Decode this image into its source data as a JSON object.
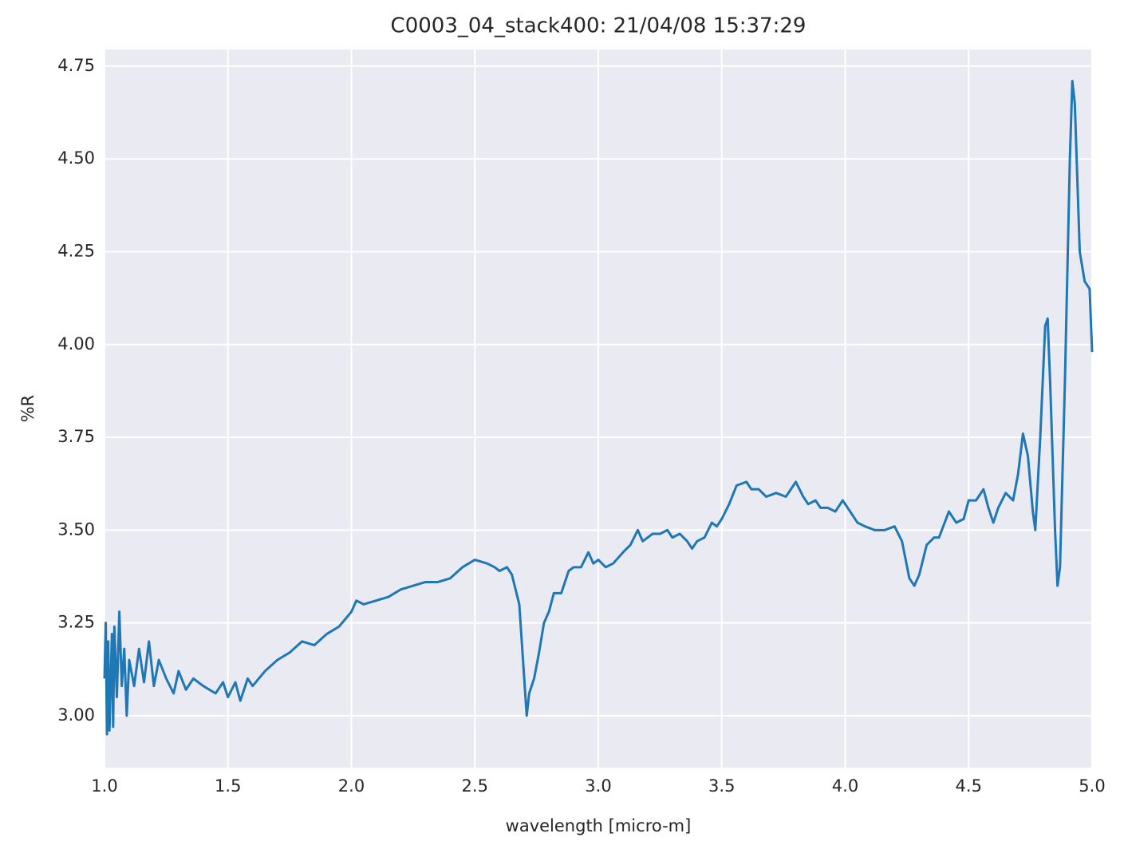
{
  "chart_data": {
    "type": "line",
    "title": "C0003_04_stack400:  21/04/08 15:37:29",
    "xlabel": "wavelength [micro-m]",
    "ylabel": "%R",
    "color": "#1f77b4",
    "grid": true,
    "xlim": [
      1.0,
      5.0
    ],
    "ylim": [
      2.86,
      4.795
    ],
    "xticks": [
      {
        "value": 1.0,
        "label": "1.0"
      },
      1.5,
      {
        "value": 2.0,
        "label": "2.0"
      },
      2.5,
      {
        "value": 3.0,
        "label": "3.0"
      },
      3.5,
      {
        "value": 4.0,
        "label": "4.0"
      },
      4.5,
      {
        "value": 5.0,
        "label": "5.0"
      }
    ],
    "yticks": [
      {
        "value": 3.0,
        "label": "3.00"
      },
      3.25,
      {
        "value": 3.5,
        "label": "3.50"
      },
      3.75,
      {
        "value": 4.0,
        "label": "4.00"
      },
      4.25,
      {
        "value": 4.5,
        "label": "4.50"
      },
      4.75
    ],
    "x": [
      1.0,
      1.005,
      1.01,
      1.015,
      1.02,
      1.03,
      1.035,
      1.04,
      1.05,
      1.06,
      1.07,
      1.08,
      1.09,
      1.1,
      1.12,
      1.14,
      1.16,
      1.18,
      1.2,
      1.22,
      1.25,
      1.28,
      1.3,
      1.33,
      1.36,
      1.4,
      1.45,
      1.48,
      1.5,
      1.53,
      1.55,
      1.58,
      1.6,
      1.65,
      1.7,
      1.75,
      1.8,
      1.85,
      1.9,
      1.95,
      2.0,
      2.02,
      2.05,
      2.1,
      2.15,
      2.2,
      2.25,
      2.3,
      2.35,
      2.4,
      2.45,
      2.5,
      2.55,
      2.58,
      2.6,
      2.63,
      2.65,
      2.68,
      2.7,
      2.71,
      2.72,
      2.74,
      2.76,
      2.78,
      2.8,
      2.82,
      2.85,
      2.88,
      2.9,
      2.93,
      2.96,
      2.98,
      3.0,
      3.03,
      3.06,
      3.1,
      3.13,
      3.16,
      3.18,
      3.22,
      3.25,
      3.28,
      3.3,
      3.33,
      3.36,
      3.38,
      3.4,
      3.43,
      3.46,
      3.48,
      3.5,
      3.53,
      3.56,
      3.6,
      3.62,
      3.65,
      3.68,
      3.72,
      3.76,
      3.8,
      3.83,
      3.85,
      3.88,
      3.9,
      3.93,
      3.96,
      3.99,
      4.02,
      4.05,
      4.08,
      4.12,
      4.16,
      4.2,
      4.23,
      4.26,
      4.28,
      4.3,
      4.33,
      4.36,
      4.38,
      4.42,
      4.45,
      4.48,
      4.5,
      4.53,
      4.56,
      4.58,
      4.6,
      4.62,
      4.65,
      4.68,
      4.7,
      4.72,
      4.74,
      4.76,
      4.77,
      4.79,
      4.81,
      4.82,
      4.83,
      4.85,
      4.86,
      4.87,
      4.89,
      4.91,
      4.92,
      4.93,
      4.95,
      4.97,
      4.99,
      5.0
    ],
    "values": [
      3.1,
      3.25,
      2.95,
      3.2,
      2.96,
      3.22,
      2.97,
      3.24,
      3.05,
      3.28,
      3.08,
      3.18,
      3.0,
      3.15,
      3.08,
      3.18,
      3.09,
      3.2,
      3.08,
      3.15,
      3.1,
      3.06,
      3.12,
      3.07,
      3.1,
      3.08,
      3.06,
      3.09,
      3.05,
      3.09,
      3.04,
      3.1,
      3.08,
      3.12,
      3.15,
      3.17,
      3.2,
      3.19,
      3.22,
      3.24,
      3.28,
      3.31,
      3.3,
      3.31,
      3.32,
      3.34,
      3.35,
      3.36,
      3.36,
      3.37,
      3.4,
      3.42,
      3.41,
      3.4,
      3.39,
      3.4,
      3.38,
      3.3,
      3.1,
      3.0,
      3.06,
      3.1,
      3.17,
      3.25,
      3.28,
      3.33,
      3.33,
      3.39,
      3.4,
      3.4,
      3.44,
      3.41,
      3.42,
      3.4,
      3.41,
      3.44,
      3.46,
      3.5,
      3.47,
      3.49,
      3.49,
      3.5,
      3.48,
      3.49,
      3.47,
      3.45,
      3.47,
      3.48,
      3.52,
      3.51,
      3.53,
      3.57,
      3.62,
      3.63,
      3.61,
      3.61,
      3.59,
      3.6,
      3.59,
      3.63,
      3.59,
      3.57,
      3.58,
      3.56,
      3.56,
      3.55,
      3.58,
      3.55,
      3.52,
      3.51,
      3.5,
      3.5,
      3.51,
      3.47,
      3.37,
      3.35,
      3.38,
      3.46,
      3.48,
      3.48,
      3.55,
      3.52,
      3.53,
      3.58,
      3.58,
      3.61,
      3.56,
      3.52,
      3.56,
      3.6,
      3.58,
      3.65,
      3.76,
      3.7,
      3.55,
      3.5,
      3.75,
      4.05,
      4.07,
      3.9,
      3.5,
      3.35,
      3.4,
      3.9,
      4.5,
      4.71,
      4.65,
      4.25,
      4.17,
      4.15,
      3.98
    ]
  }
}
